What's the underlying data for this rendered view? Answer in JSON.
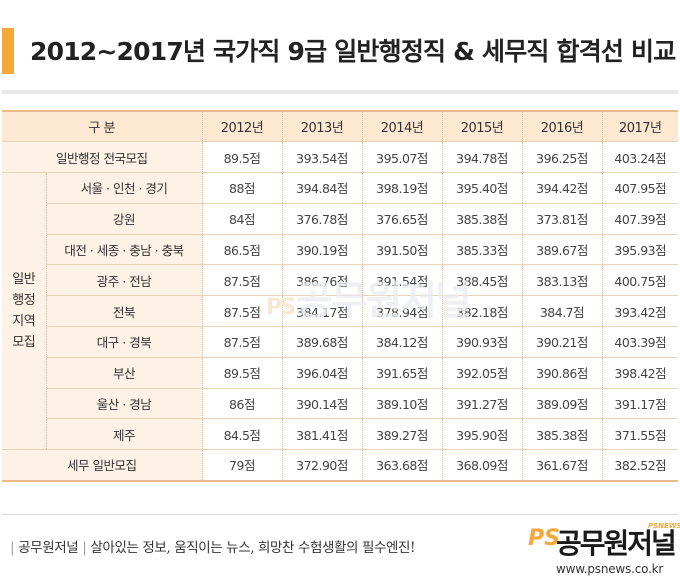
{
  "title": "2012~2017년 국가직 9급 일반행정직 & 세무직 합격선 비교",
  "table": {
    "header": {
      "category": "구 분",
      "years": [
        "2012년",
        "2013년",
        "2014년",
        "2015년",
        "2016년",
        "2017년"
      ]
    },
    "national": {
      "label": "일반행정 전국모집",
      "values": [
        "89.5점",
        "393.54점",
        "395.07점",
        "394.78점",
        "396.25점",
        "403.24점"
      ]
    },
    "regional_group": [
      "일반",
      "행정",
      "지역",
      "모집"
    ],
    "regional": [
      {
        "label": "서울 · 인천 · 경기",
        "values": [
          "88점",
          "394.84점",
          "398.19점",
          "395.40점",
          "394.42점",
          "407.95점"
        ]
      },
      {
        "label": "강원",
        "values": [
          "84점",
          "376.78점",
          "376.65점",
          "385.38점",
          "373.81점",
          "407.39점"
        ]
      },
      {
        "label": "대전 · 세종 · 충남 · 충북",
        "values": [
          "86.5점",
          "390.19점",
          "391.50점",
          "385.33점",
          "389.67점",
          "395.93점"
        ]
      },
      {
        "label": "광주 · 전남",
        "values": [
          "87.5점",
          "386.76점",
          "391.54점",
          "388.45점",
          "383.13점",
          "400.75점"
        ]
      },
      {
        "label": "전북",
        "values": [
          "87.5점",
          "384.17점",
          "378.94점",
          "382.18점",
          "384.7점",
          "393.42점"
        ]
      },
      {
        "label": "대구 · 경북",
        "values": [
          "87.5점",
          "389.68점",
          "384.12점",
          "390.93점",
          "390.21점",
          "403.39점"
        ]
      },
      {
        "label": "부산",
        "values": [
          "89.5점",
          "396.04점",
          "391.65점",
          "392.05점",
          "390.86점",
          "398.42점"
        ]
      },
      {
        "label": "울산 · 경남",
        "values": [
          "86점",
          "390.14점",
          "389.10점",
          "391.27점",
          "389.09점",
          "391.17점"
        ]
      },
      {
        "label": "제주",
        "values": [
          "84.5점",
          "381.41점",
          "389.27점",
          "395.90점",
          "385.38점",
          "371.55점"
        ]
      }
    ],
    "tax": {
      "label": "세무 일반모집",
      "values": [
        "79점",
        "372.90점",
        "363.68점",
        "368.09점",
        "361.67점",
        "382.52점"
      ]
    }
  },
  "watermark": {
    "ps": "PS",
    "brand": "공무원저널"
  },
  "footer": {
    "brand": "공무원저널",
    "slogan": "살아있는 정보, 움직이는 뉴스, 희망찬 수험생활의 필수엔진!",
    "logo_ps": "PS",
    "logo_brand": "공무원저널",
    "logo_psnews": "PSNEWS",
    "site": "www.psnews.co.kr"
  }
}
